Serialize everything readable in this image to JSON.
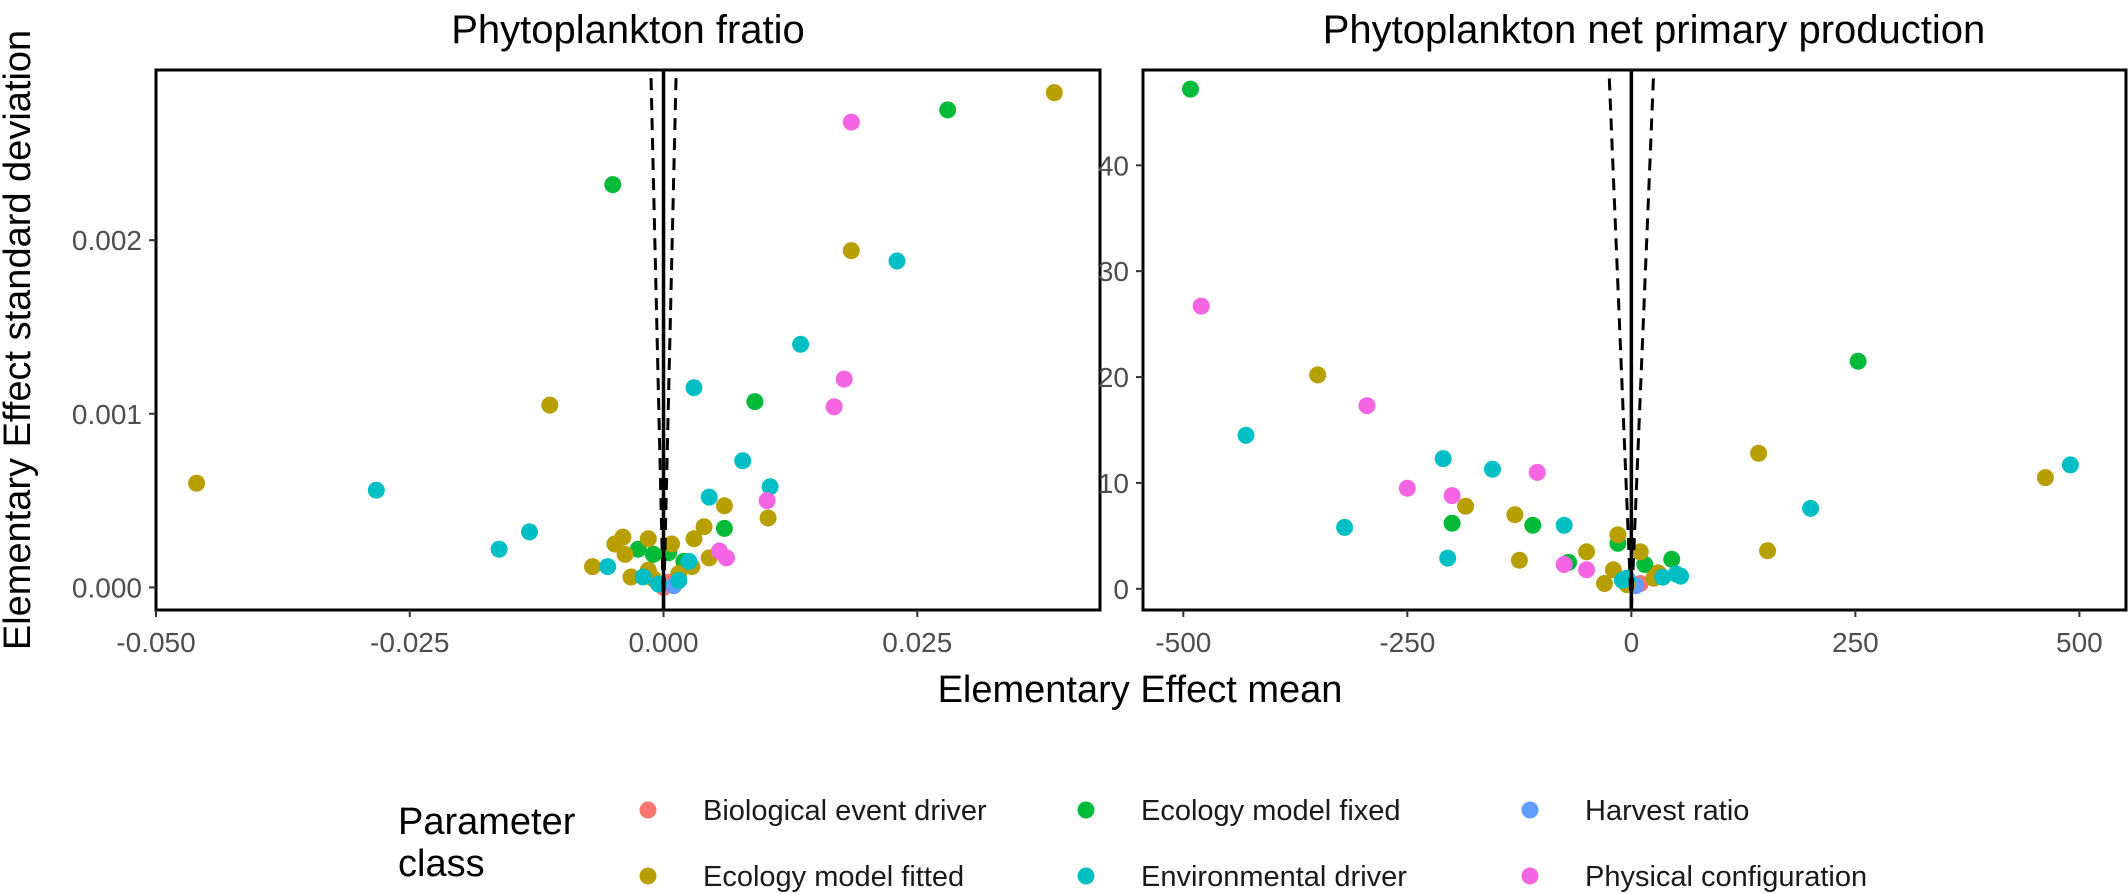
{
  "colors": {
    "Biological event driver": "#F8766D",
    "Ecology model fixed": "#00BA38",
    "Harvest ratio": "#619CFF",
    "Ecology model fitted": "#B79F00",
    "Environmental driver": "#00BFC4",
    "Physical configuration": "#F564E3"
  },
  "shared_axes": {
    "xlabel": "Elementary Effect mean",
    "ylabel": "Elementary Effect standard deviation"
  },
  "legend": {
    "title_line1": "Parameter",
    "title_line2": "class",
    "items": [
      "Biological event driver",
      "Ecology model fixed",
      "Harvest ratio",
      "Ecology model fitted",
      "Environmental driver",
      "Physical configuration"
    ]
  },
  "chart_data": [
    {
      "type": "scatter",
      "title": "Phytoplankton fratio",
      "xlabel": "Elementary Effect mean",
      "ylabel": "Elementary Effect standard deviation",
      "xlim": [
        -0.05,
        0.043
      ],
      "ylim": [
        -0.00013,
        0.00298
      ],
      "xticks": [
        -0.05,
        -0.025,
        0.0,
        0.025
      ],
      "xtick_labels": [
        "-0.050",
        "-0.025",
        "0.000",
        "0.025"
      ],
      "yticks": [
        0.0,
        0.001,
        0.002
      ],
      "ytick_labels": [
        "0.000",
        "0.001",
        "0.002"
      ],
      "reference_lines": {
        "solid_x": 0.0,
        "dashed_upper": [
          -0.00125,
          0.00125
        ],
        "dashed_lower": [
          0.0,
          0.0
        ]
      },
      "series": [
        {
          "name": "Biological event driver",
          "points": [
            [
              0.0,
              0.0
            ],
            [
              0.0005,
              3e-05
            ]
          ]
        },
        {
          "name": "Ecology model fixed",
          "points": [
            [
              0.028,
              0.00275
            ],
            [
              -0.005,
              0.00232
            ],
            [
              0.009,
              0.00107
            ],
            [
              0.006,
              0.00034
            ],
            [
              -0.0025,
              0.00022
            ],
            [
              -0.001,
              0.00019
            ],
            [
              0.0005,
              0.0002
            ],
            [
              0.002,
              0.00015
            ]
          ]
        },
        {
          "name": "Harvest ratio",
          "points": [
            [
              0.001,
              1e-05
            ]
          ]
        },
        {
          "name": "Ecology model fitted",
          "points": [
            [
              0.0385,
              0.00285
            ],
            [
              0.0185,
              0.00194
            ],
            [
              -0.046,
              0.0006
            ],
            [
              -0.0112,
              0.00105
            ],
            [
              0.006,
              0.00047
            ],
            [
              0.0103,
              0.0004
            ],
            [
              0.004,
              0.00035
            ],
            [
              0.003,
              0.00028
            ],
            [
              0.0008,
              0.00025
            ],
            [
              -0.004,
              0.00029
            ],
            [
              -0.0048,
              0.00025
            ],
            [
              -0.0038,
              0.00019
            ],
            [
              -0.007,
              0.00012
            ],
            [
              -0.0032,
              6e-05
            ],
            [
              -0.0015,
              0.00028
            ],
            [
              -0.0015,
              0.0001
            ],
            [
              0.0028,
              0.00012
            ],
            [
              0.0045,
              0.00017
            ],
            [
              -0.001,
              5e-05
            ],
            [
              0.0015,
              8e-05
            ]
          ]
        },
        {
          "name": "Environmental driver",
          "points": [
            [
              0.023,
              0.00188
            ],
            [
              0.0135,
              0.0014
            ],
            [
              0.003,
              0.00115
            ],
            [
              0.0078,
              0.00073
            ],
            [
              0.0105,
              0.00058
            ],
            [
              0.0045,
              0.00052
            ],
            [
              -0.0283,
              0.00056
            ],
            [
              -0.0132,
              0.00032
            ],
            [
              -0.0162,
              0.00022
            ],
            [
              -0.0055,
              0.00012
            ],
            [
              -0.002,
              6e-05
            ],
            [
              0.0025,
              0.00015
            ],
            [
              0.0015,
              4e-05
            ],
            [
              -0.0005,
              2e-05
            ]
          ]
        },
        {
          "name": "Physical configuration",
          "points": [
            [
              0.0185,
              0.00268
            ],
            [
              0.0178,
              0.0012
            ],
            [
              0.0168,
              0.00104
            ],
            [
              0.0102,
              0.0005
            ],
            [
              0.0055,
              0.00021
            ],
            [
              0.0062,
              0.00017
            ]
          ]
        }
      ]
    },
    {
      "type": "scatter",
      "title": "Phytoplankton net primary production",
      "xlabel": "Elementary Effect mean",
      "ylabel": "Elementary Effect standard deviation",
      "xlim": [
        -545,
        552
      ],
      "ylim": [
        -2,
        49
      ],
      "xticks": [
        -500,
        -250,
        0,
        250,
        500
      ],
      "xtick_labels": [
        "-500",
        "-250",
        "0",
        "250",
        "500"
      ],
      "yticks": [
        0,
        10,
        20,
        30,
        40
      ],
      "ytick_labels": [
        "0",
        "10",
        "20",
        "30",
        "40"
      ],
      "reference_lines": {
        "solid_x": 0,
        "dashed_upper": [
          -25,
          25
        ],
        "dashed_lower": [
          0,
          0
        ]
      },
      "series": [
        {
          "name": "Biological event driver",
          "points": [
            [
              10,
              0.5
            ]
          ]
        },
        {
          "name": "Ecology model fixed",
          "points": [
            [
              -492,
              47.2
            ],
            [
              253,
              21.5
            ],
            [
              -200,
              6.2
            ],
            [
              -110,
              6.0
            ],
            [
              -15,
              4.3
            ],
            [
              -70,
              2.5
            ],
            [
              15,
              2.3
            ],
            [
              45,
              2.8
            ],
            [
              -5,
              0.8
            ]
          ]
        },
        {
          "name": "Harvest ratio",
          "points": [
            [
              5,
              0.3
            ]
          ]
        },
        {
          "name": "Ecology model fitted",
          "points": [
            [
              -350,
              20.2
            ],
            [
              142,
              12.8
            ],
            [
              462,
              10.5
            ],
            [
              -185,
              7.8
            ],
            [
              -130,
              7.0
            ],
            [
              152,
              3.6
            ],
            [
              -125,
              2.7
            ],
            [
              -15,
              5.1
            ],
            [
              -50,
              3.5
            ],
            [
              10,
              3.5
            ],
            [
              -20,
              1.8
            ],
            [
              -30,
              0.5
            ],
            [
              25,
              1.0
            ],
            [
              30,
              1.5
            ],
            [
              -5,
              0.4
            ]
          ]
        },
        {
          "name": "Environmental driver",
          "points": [
            [
              -430,
              14.5
            ],
            [
              -210,
              12.3
            ],
            [
              -155,
              11.3
            ],
            [
              200,
              7.6
            ],
            [
              490,
              11.7
            ],
            [
              -320,
              5.8
            ],
            [
              -75,
              6.0
            ],
            [
              -205,
              2.9
            ],
            [
              55,
              1.2
            ],
            [
              50,
              1.4
            ],
            [
              -10,
              0.8
            ],
            [
              -5,
              1.0
            ],
            [
              35,
              1.1
            ]
          ]
        },
        {
          "name": "Physical configuration",
          "points": [
            [
              -480,
              26.7
            ],
            [
              -295,
              17.3
            ],
            [
              -200,
              8.8
            ],
            [
              -105,
              11.0
            ],
            [
              -250,
              9.5
            ],
            [
              -75,
              2.3
            ],
            [
              -50,
              1.8
            ]
          ]
        }
      ]
    }
  ]
}
